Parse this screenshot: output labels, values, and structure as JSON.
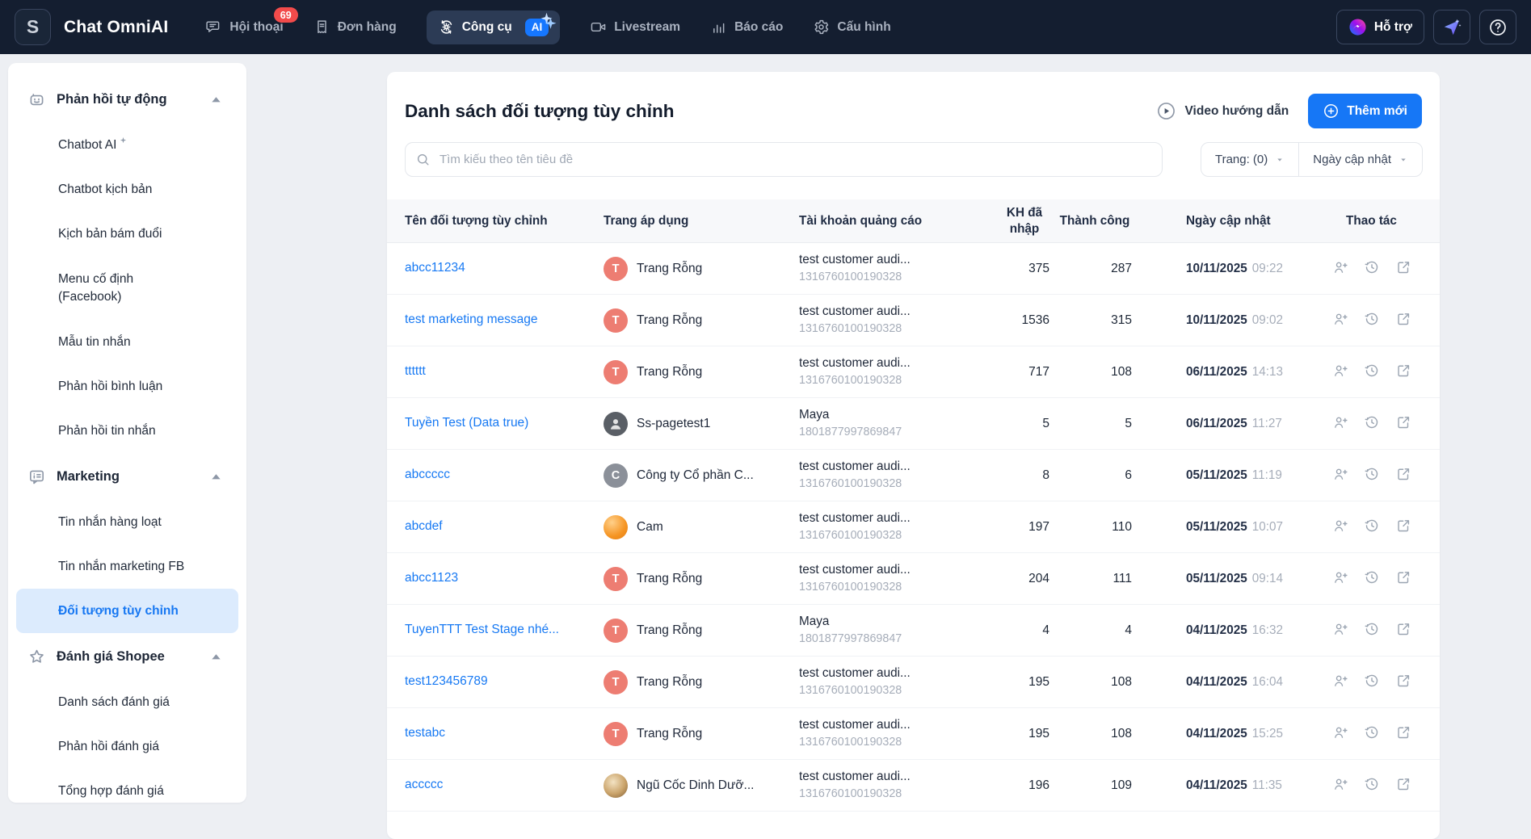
{
  "topbar": {
    "logo_letter": "S",
    "brand": "Chat OmniAI",
    "nav": [
      {
        "key": "hoi-thoai",
        "label": "Hội thoại",
        "icon": "chat",
        "badge": "69"
      },
      {
        "key": "don-hang",
        "label": "Đơn hàng",
        "icon": "receipt"
      },
      {
        "key": "cong-cu",
        "label": "Công cụ",
        "icon": "gear-sync",
        "active": true,
        "ai_badge": "AI"
      },
      {
        "key": "livestream",
        "label": "Livestream",
        "icon": "video"
      },
      {
        "key": "bao-cao",
        "label": "Báo cáo",
        "icon": "chart"
      },
      {
        "key": "cau-hinh",
        "label": "Cấu hình",
        "icon": "gear"
      }
    ],
    "support_label": "Hỗ trợ"
  },
  "sidebar": {
    "sections": [
      {
        "key": "phan-hoi-tu-dong",
        "label": "Phản hồi tự động",
        "icon": "robot",
        "items": [
          {
            "key": "chatbot-ai",
            "label": "Chatbot AI",
            "sparkle": true
          },
          {
            "key": "chatbot-kich-ban",
            "label": "Chatbot kịch bản"
          },
          {
            "key": "kich-ban-bam-duoi",
            "label": "Kịch bản bám đuổi"
          },
          {
            "key": "menu-co-dinh-facebook",
            "label": "Menu cố định\n(Facebook)"
          },
          {
            "key": "mau-tin-nhan",
            "label": "Mẫu tin nhắn"
          },
          {
            "key": "phan-hoi-binh-luan",
            "label": "Phản hồi bình luận"
          },
          {
            "key": "phan-hoi-tin-nhan",
            "label": "Phản hồi tin nhắn"
          }
        ]
      },
      {
        "key": "marketing",
        "label": "Marketing",
        "icon": "list-comment",
        "items": [
          {
            "key": "tin-nhan-hang-loat",
            "label": "Tin nhắn hàng loạt"
          },
          {
            "key": "tin-nhan-marketing-fb",
            "label": "Tin nhắn marketing FB"
          },
          {
            "key": "doi-tuong-tuy-chinh",
            "label": "Đối tượng tùy chỉnh",
            "active": true
          }
        ]
      },
      {
        "key": "danh-gia-shopee",
        "label": "Đánh giá Shopee",
        "icon": "star",
        "items": [
          {
            "key": "danh-sach-danh-gia",
            "label": "Danh sách đánh giá"
          },
          {
            "key": "phan-hoi-danh-gia",
            "label": "Phản hồi đánh giá"
          },
          {
            "key": "tong-hop-danh-gia",
            "label": "Tổng hợp đánh giá"
          }
        ]
      }
    ]
  },
  "main": {
    "title": "Danh sách đối tượng tùy chỉnh",
    "video_guide": "Video hướng dẫn",
    "add_new": "Thêm mới",
    "search_placeholder": "Tìm kiếu theo tên tiêu đề",
    "filters": {
      "page": "Trang: (0)",
      "sort": "Ngày cập nhật"
    },
    "table": {
      "headers": [
        "Tên đối tượng tùy chỉnh",
        "Trang áp dụng",
        "Tài khoản quảng cáo",
        "KH đã nhập",
        "Thành công",
        "Ngày cập nhật",
        "Thao tác"
      ],
      "action_icons": [
        "user-plus-icon",
        "history-icon",
        "external-link-icon"
      ],
      "rows": [
        {
          "name": "abcc11234",
          "page": "Trang Rỗng",
          "avatar": {
            "kind": "letter",
            "text": "T",
            "bg": "#ed7d72"
          },
          "account": "test customer audi...",
          "account_id": "1316760100190328",
          "imported": "375",
          "success": "287",
          "date": "10/11/2025",
          "time": "09:22"
        },
        {
          "name": "test marketing message",
          "page": "Trang Rỗng",
          "avatar": {
            "kind": "letter",
            "text": "T",
            "bg": "#ed7d72"
          },
          "account": "test customer audi...",
          "account_id": "1316760100190328",
          "imported": "1536",
          "success": "315",
          "date": "10/11/2025",
          "time": "09:02"
        },
        {
          "name": "tttttt",
          "page": "Trang Rỗng",
          "avatar": {
            "kind": "letter",
            "text": "T",
            "bg": "#ed7d72"
          },
          "account": "test customer audi...",
          "account_id": "1316760100190328",
          "imported": "717",
          "success": "108",
          "date": "06/11/2025",
          "time": "14:13"
        },
        {
          "name": "Tuyền Test (Data true)",
          "page": "Ss-pagetest1",
          "avatar": {
            "kind": "person"
          },
          "account": "Maya",
          "account_id": "1801877997869847",
          "imported": "5",
          "success": "5",
          "date": "06/11/2025",
          "time": "11:27"
        },
        {
          "name": "abccccc",
          "page": "Công ty Cổ phần C...",
          "avatar": {
            "kind": "letter",
            "text": "C",
            "bg": "#8b9099"
          },
          "account": "test customer audi...",
          "account_id": "1316760100190328",
          "imported": "8",
          "success": "6",
          "date": "05/11/2025",
          "time": "11:19"
        },
        {
          "name": "abcdef",
          "page": "Cam",
          "avatar": {
            "kind": "orange"
          },
          "account": "test customer audi...",
          "account_id": "1316760100190328",
          "imported": "197",
          "success": "110",
          "date": "05/11/2025",
          "time": "10:07"
        },
        {
          "name": "abcc1123",
          "page": "Trang Rỗng",
          "avatar": {
            "kind": "letter",
            "text": "T",
            "bg": "#ed7d72"
          },
          "account": "test customer audi...",
          "account_id": "1316760100190328",
          "imported": "204",
          "success": "111",
          "date": "05/11/2025",
          "time": "09:14"
        },
        {
          "name": "TuyenTTT Test Stage nhé...",
          "page": "Trang Rỗng",
          "avatar": {
            "kind": "letter",
            "text": "T",
            "bg": "#ed7d72"
          },
          "account": "Maya",
          "account_id": "1801877997869847",
          "imported": "4",
          "success": "4",
          "date": "04/11/2025",
          "time": "16:32"
        },
        {
          "name": "test123456789",
          "page": "Trang Rỗng",
          "avatar": {
            "kind": "letter",
            "text": "T",
            "bg": "#ed7d72"
          },
          "account": "test customer audi...",
          "account_id": "1316760100190328",
          "imported": "195",
          "success": "108",
          "date": "04/11/2025",
          "time": "16:04"
        },
        {
          "name": "testabc",
          "page": "Trang Rỗng",
          "avatar": {
            "kind": "letter",
            "text": "T",
            "bg": "#ed7d72"
          },
          "account": "test customer audi...",
          "account_id": "1316760100190328",
          "imported": "195",
          "success": "108",
          "date": "04/11/2025",
          "time": "15:25"
        },
        {
          "name": "accccc",
          "page": "Ngũ Cốc Dinh Dưỡ...",
          "avatar": {
            "kind": "cereal"
          },
          "account": "test customer audi...",
          "account_id": "1316760100190328",
          "imported": "196",
          "success": "109",
          "date": "04/11/2025",
          "time": "11:35"
        }
      ]
    }
  },
  "colors": {
    "topbar_bg": "#141e30",
    "accent_blue": "#1677f6",
    "link_blue": "#1779f3",
    "badge_red": "#f24b4b",
    "active_item_bg": "#dcebfd",
    "page_bg": "#edeff3"
  }
}
